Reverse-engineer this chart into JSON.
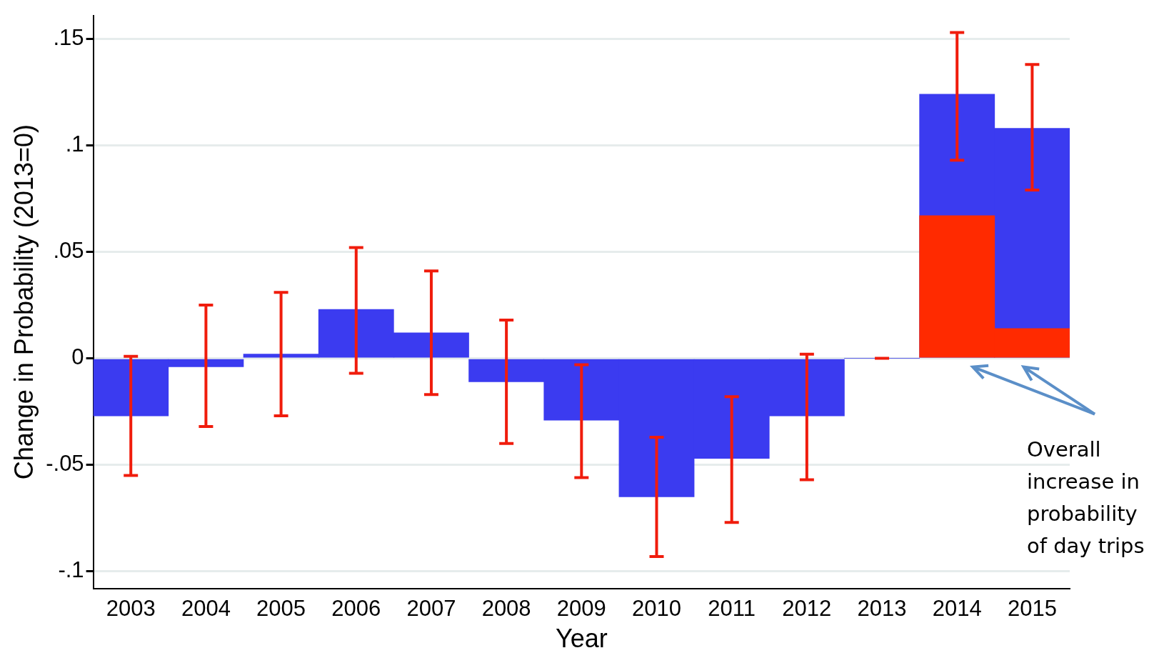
{
  "chart_data": {
    "type": "bar",
    "xlabel": "Year",
    "ylabel": "Change in Probability (2013=0)",
    "categories": [
      "2003",
      "2004",
      "2005",
      "2006",
      "2007",
      "2008",
      "2009",
      "2010",
      "2011",
      "2012",
      "2013",
      "2014",
      "2015"
    ],
    "series": [
      {
        "color": "#3b3bf0",
        "values": [
          -0.027,
          -0.004,
          0.002,
          0.023,
          0.012,
          -0.011,
          -0.029,
          -0.065,
          -0.047,
          -0.027,
          0,
          0.124,
          0.108
        ],
        "errors": [
          [
            -0.055,
            0.001
          ],
          [
            -0.032,
            0.025
          ],
          [
            -0.027,
            0.031
          ],
          [
            -0.007,
            0.052
          ],
          [
            -0.017,
            0.041
          ],
          [
            -0.04,
            0.018
          ],
          [
            -0.056,
            -0.003
          ],
          [
            -0.093,
            -0.037
          ],
          [
            -0.077,
            -0.018
          ],
          [
            -0.057,
            0.002
          ],
          [
            0,
            0
          ],
          [
            0.093,
            0.153
          ],
          [
            0.079,
            0.138
          ]
        ]
      },
      {
        "color": "#ff2a00",
        "values": [
          null,
          null,
          null,
          null,
          null,
          null,
          null,
          null,
          null,
          null,
          null,
          0.067,
          0.014
        ]
      }
    ],
    "ylim": [
      -0.108,
      0.161
    ],
    "yticks": [
      {
        "value": -0.1,
        "label": "-.1"
      },
      {
        "value": -0.05,
        "label": "-.05"
      },
      {
        "value": 0,
        "label": "0"
      },
      {
        "value": 0.05,
        "label": ".05"
      },
      {
        "value": 0.1,
        "label": ".1"
      },
      {
        "value": 0.15,
        "label": ".15"
      }
    ],
    "grid": "y",
    "legend": false,
    "annotations": [
      "Overall increase in probability of day trips"
    ]
  }
}
